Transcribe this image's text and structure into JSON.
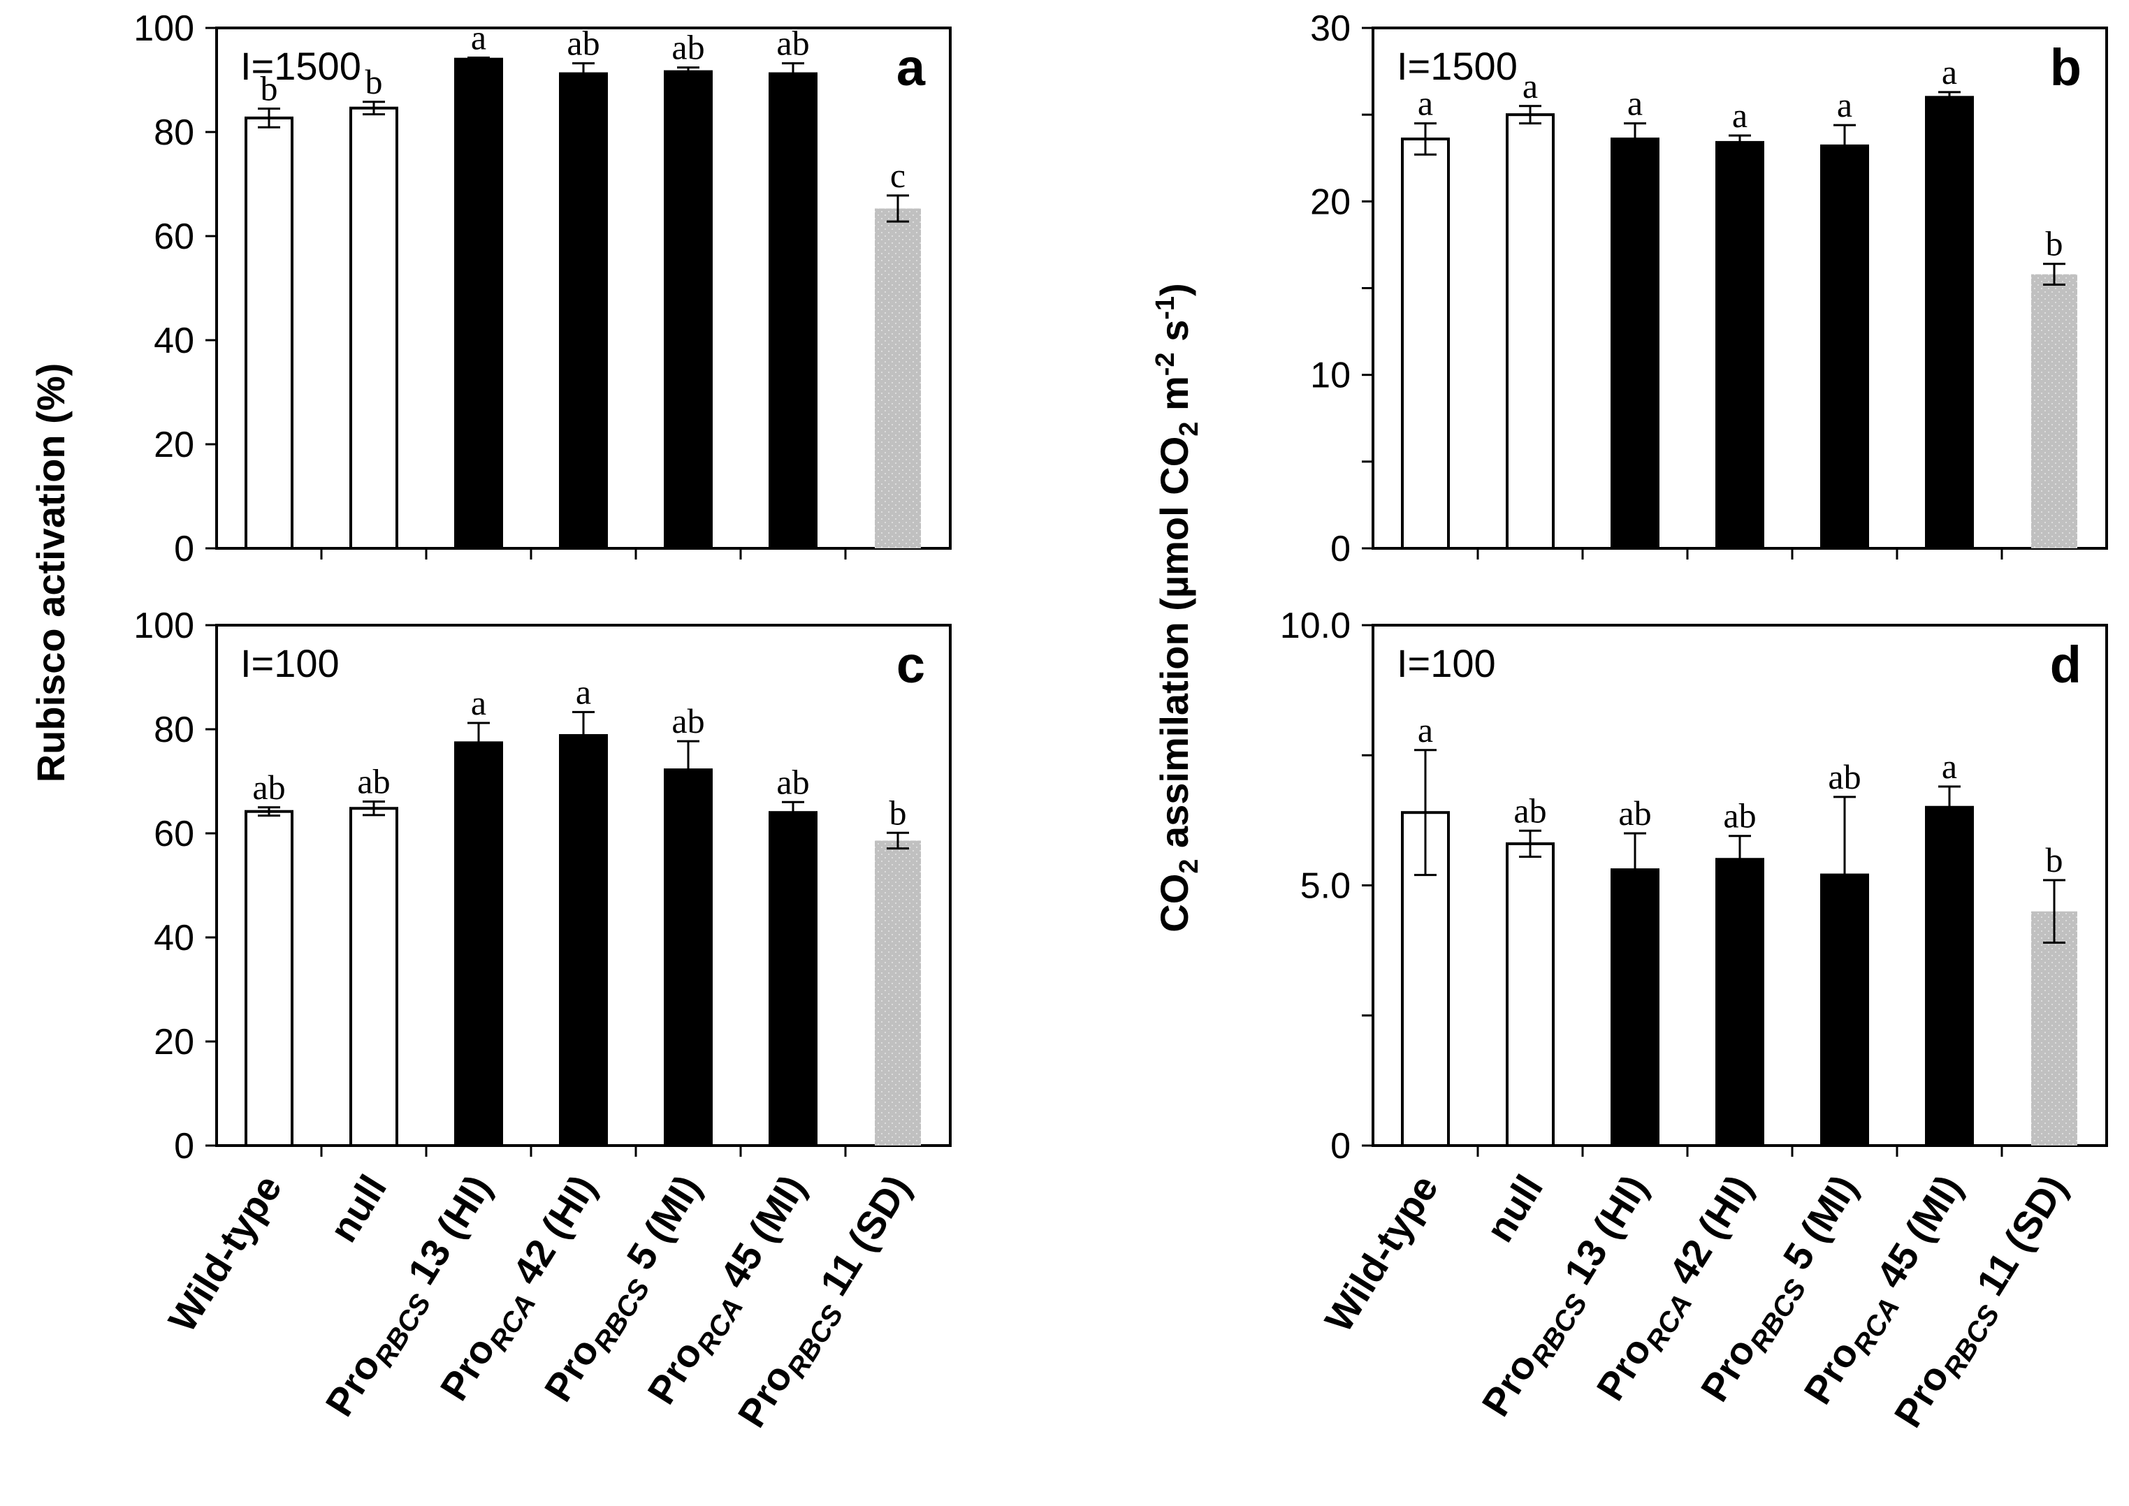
{
  "categories": [
    {
      "main": "Wild-type"
    },
    {
      "main": "null"
    },
    {
      "pre": "Pro",
      "sub": "RBCS",
      "rest": " 13 (HI)"
    },
    {
      "pre": "Pro",
      "sub": "RCA",
      "rest": " 42 (HI)"
    },
    {
      "pre": "Pro",
      "sub": "RBCS",
      "rest": " 5 (MI)"
    },
    {
      "pre": "Pro",
      "sub": "RCA",
      "rest": " 45 (MI)"
    },
    {
      "pre": "Pro",
      "sub": "RBCS",
      "rest": " 11 (SD)"
    }
  ],
  "ylabel_left": "Rubisco activation (%)",
  "ylabel_right": {
    "part1": "CO",
    "sub1": "2",
    "part2": " assimilation (µmol CO",
    "sub2": "2",
    "part3": " m",
    "sup1": "-2",
    "part4": " s",
    "sup2": "-1",
    "part5": ")"
  },
  "colors": {
    "open": "#ffffff",
    "filled": "#000000",
    "gray": "#c0c0c0",
    "edge": "#000000"
  },
  "fills": [
    "open",
    "open",
    "filled",
    "filled",
    "filled",
    "filled",
    "gray"
  ],
  "chart_data": [
    {
      "id": "a",
      "type": "bar",
      "panel_letter": "a",
      "condition": "I=1500",
      "ylabel": "Rubisco activation (%)",
      "ylim": [
        0,
        100
      ],
      "yticks": [
        0,
        20,
        40,
        60,
        80,
        100
      ],
      "ytick_labels": [
        "0",
        "20",
        "40",
        "60",
        "80",
        "100"
      ],
      "values": [
        82.7,
        84.6,
        94.0,
        91.2,
        91.6,
        91.2,
        65.3
      ],
      "errors": [
        1.8,
        1.2,
        0.3,
        2.0,
        0.8,
        2.0,
        2.5
      ],
      "letters": [
        "b",
        "b",
        "a",
        "ab",
        "ab",
        "ab",
        "c"
      ]
    },
    {
      "id": "b",
      "type": "bar",
      "panel_letter": "b",
      "condition": "I=1500",
      "ylabel": "CO2 assimilation (µmol CO2 m-2 s-1)",
      "ylim": [
        0,
        30
      ],
      "yticks": [
        0,
        10,
        20,
        30
      ],
      "ytick_labels": [
        "0",
        "10",
        "20",
        "30"
      ],
      "values": [
        23.6,
        25.0,
        23.6,
        23.4,
        23.2,
        26.0,
        15.8
      ],
      "errors": [
        0.9,
        0.5,
        0.9,
        0.4,
        1.2,
        0.3,
        0.6
      ],
      "letters": [
        "a",
        "a",
        "a",
        "a",
        "a",
        "a",
        "b"
      ]
    },
    {
      "id": "c",
      "type": "bar",
      "panel_letter": "c",
      "condition": "I=100",
      "ylabel": "Rubisco activation (%)",
      "ylim": [
        0,
        100
      ],
      "yticks": [
        0,
        20,
        40,
        60,
        80,
        100
      ],
      "ytick_labels": [
        "0",
        "20",
        "40",
        "60",
        "80",
        "100"
      ],
      "values": [
        64.2,
        64.8,
        77.4,
        78.8,
        72.2,
        64.0,
        58.6
      ],
      "errors": [
        0.8,
        1.3,
        3.8,
        4.5,
        5.5,
        2.0,
        1.5
      ],
      "letters": [
        "ab",
        "ab",
        "a",
        "a",
        "ab",
        "ab",
        "b"
      ]
    },
    {
      "id": "d",
      "type": "bar",
      "panel_letter": "d",
      "condition": "I=100",
      "ylabel": "CO2 assimilation (µmol CO2 m-2 s-1)",
      "ylim": [
        0,
        10
      ],
      "yticks": [
        0,
        5,
        10
      ],
      "ytick_labels": [
        "0",
        "5.0",
        "10.0"
      ],
      "values": [
        6.4,
        5.8,
        5.3,
        5.5,
        5.2,
        6.5,
        4.5
      ],
      "errors": [
        1.2,
        0.25,
        0.7,
        0.45,
        1.5,
        0.4,
        0.6
      ],
      "letters": [
        "a",
        "ab",
        "ab",
        "ab",
        "ab",
        "a",
        "b"
      ]
    }
  ]
}
